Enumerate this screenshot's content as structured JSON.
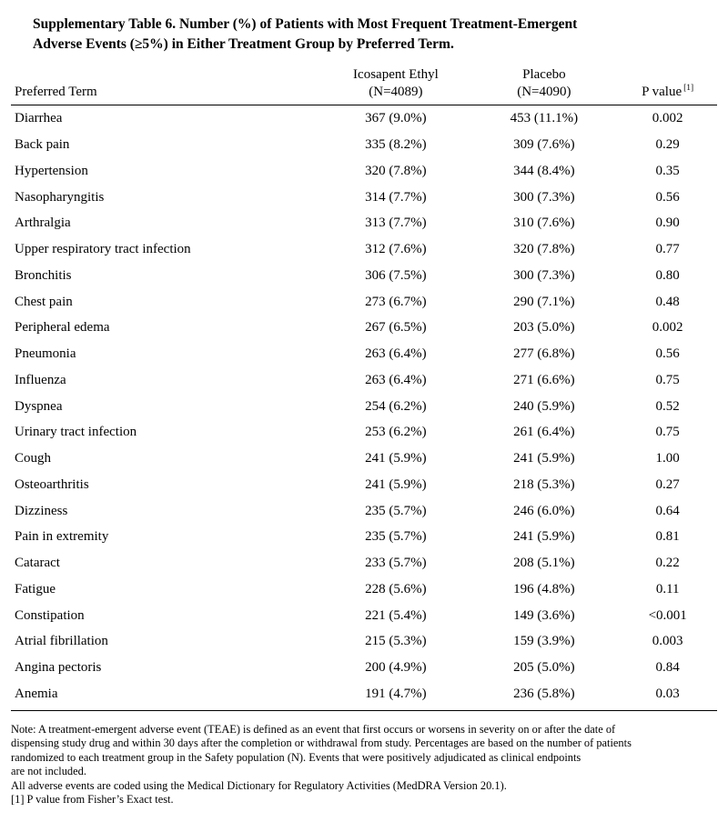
{
  "title": {
    "line1": "Supplementary Table 6. Number (%) of Patients with Most Frequent Treatment-Emergent",
    "line2": "Adverse Events (≥5%) in Either Treatment Group by Preferred Term."
  },
  "table": {
    "columns": {
      "term": "Preferred Term",
      "icosapent_line1": "Icosapent Ethyl",
      "icosapent_line2": "(N=4089)",
      "placebo_line1": "Placebo",
      "placebo_line2": "(N=4090)",
      "p_value": "P value",
      "p_value_sup": "[1]"
    },
    "rows": [
      {
        "term": "Diarrhea",
        "icosapent": "367 (9.0%)",
        "placebo": "453 (11.1%)",
        "p": "0.002"
      },
      {
        "term": "Back pain",
        "icosapent": "335 (8.2%)",
        "placebo": "309 (7.6%)",
        "p": "0.29"
      },
      {
        "term": "Hypertension",
        "icosapent": "320 (7.8%)",
        "placebo": "344 (8.4%)",
        "p": "0.35"
      },
      {
        "term": "Nasopharyngitis",
        "icosapent": "314 (7.7%)",
        "placebo": "300 (7.3%)",
        "p": "0.56"
      },
      {
        "term": "Arthralgia",
        "icosapent": "313 (7.7%)",
        "placebo": "310 (7.6%)",
        "p": "0.90"
      },
      {
        "term": "Upper respiratory tract infection",
        "icosapent": "312 (7.6%)",
        "placebo": "320 (7.8%)",
        "p": "0.77"
      },
      {
        "term": "Bronchitis",
        "icosapent": "306 (7.5%)",
        "placebo": "300 (7.3%)",
        "p": "0.80"
      },
      {
        "term": "Chest pain",
        "icosapent": "273 (6.7%)",
        "placebo": "290 (7.1%)",
        "p": "0.48"
      },
      {
        "term": "Peripheral edema",
        "icosapent": "267 (6.5%)",
        "placebo": "203 (5.0%)",
        "p": "0.002"
      },
      {
        "term": "Pneumonia",
        "icosapent": "263 (6.4%)",
        "placebo": "277 (6.8%)",
        "p": "0.56"
      },
      {
        "term": "Influenza",
        "icosapent": "263 (6.4%)",
        "placebo": "271 (6.6%)",
        "p": "0.75"
      },
      {
        "term": "Dyspnea",
        "icosapent": "254 (6.2%)",
        "placebo": "240 (5.9%)",
        "p": "0.52"
      },
      {
        "term": "Urinary tract infection",
        "icosapent": "253 (6.2%)",
        "placebo": "261 (6.4%)",
        "p": "0.75"
      },
      {
        "term": "Cough",
        "icosapent": "241 (5.9%)",
        "placebo": "241 (5.9%)",
        "p": "1.00"
      },
      {
        "term": "Osteoarthritis",
        "icosapent": "241 (5.9%)",
        "placebo": "218 (5.3%)",
        "p": "0.27"
      },
      {
        "term": "Dizziness",
        "icosapent": "235 (5.7%)",
        "placebo": "246 (6.0%)",
        "p": "0.64"
      },
      {
        "term": "Pain in extremity",
        "icosapent": "235 (5.7%)",
        "placebo": "241 (5.9%)",
        "p": "0.81"
      },
      {
        "term": "Cataract",
        "icosapent": "233 (5.7%)",
        "placebo": "208 (5.1%)",
        "p": "0.22"
      },
      {
        "term": "Fatigue",
        "icosapent": "228 (5.6%)",
        "placebo": "196 (4.8%)",
        "p": "0.11"
      },
      {
        "term": "Constipation",
        "icosapent": "221 (5.4%)",
        "placebo": "149 (3.6%)",
        "p": "<0.001"
      },
      {
        "term": "Atrial fibrillation",
        "icosapent": "215 (5.3%)",
        "placebo": "159 (3.9%)",
        "p": "0.003"
      },
      {
        "term": "Angina pectoris",
        "icosapent": "200 (4.9%)",
        "placebo": "205 (5.0%)",
        "p": "0.84"
      },
      {
        "term": "Anemia",
        "icosapent": "191 (4.7%)",
        "placebo": "236 (5.8%)",
        "p": "0.03"
      }
    ]
  },
  "notes": [
    "Note: A treatment-emergent adverse event (TEAE) is defined as an event that first occurs or worsens in severity on or after the date of",
    "dispensing study drug and within 30 days after the completion or withdrawal from study. Percentages are based on the number of patients",
    "randomized to each treatment group in the Safety population (N). Events that were positively adjudicated as clinical endpoints",
    "are not included.",
    "All adverse events are coded using the Medical Dictionary for Regulatory Activities (MedDRA Version 20.1).",
    "[1] P value from Fisher’s Exact test."
  ]
}
